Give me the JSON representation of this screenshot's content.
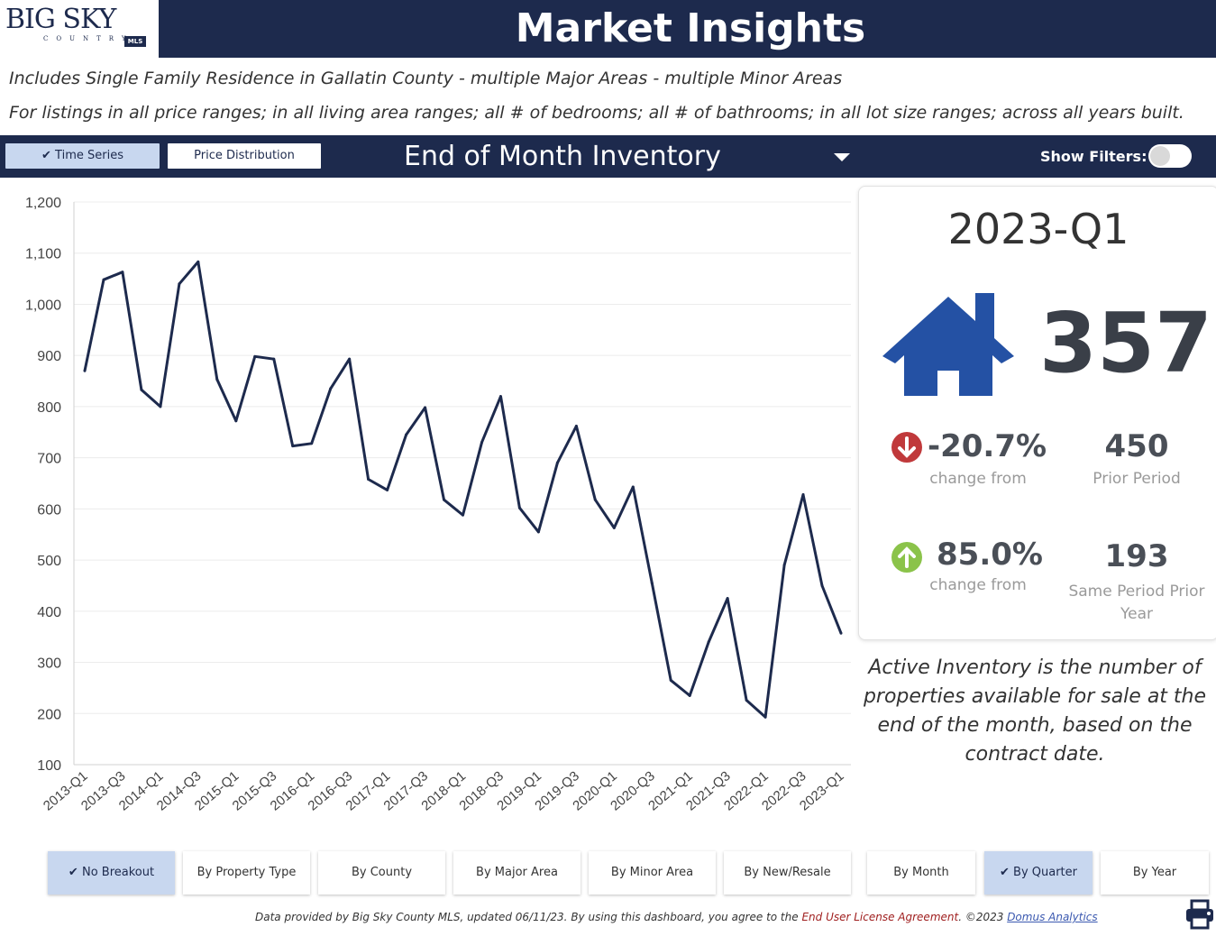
{
  "logo": {
    "text": "BIG SKY",
    "sub": "COUNTRY",
    "badge": "MLS"
  },
  "header": {
    "title": "Market Insights"
  },
  "description": {
    "line1": "Includes Single Family Residence in Gallatin County - multiple Major Areas - multiple Minor Areas",
    "line2": "For listings in all price ranges; in all living area ranges; all # of bedrooms; all # of bathrooms; in all lot size ranges; across all years built."
  },
  "toolbar": {
    "time_series": "Time Series",
    "price_distribution": "Price Distribution",
    "measure": "End of Month Inventory",
    "show_filters": "Show Filters:"
  },
  "kpi": {
    "period": "2023-Q1",
    "value": "357",
    "change_prior_pct": "-20.7%",
    "change_prior_label": "change from",
    "prior_value": "450",
    "prior_label": "Prior Period",
    "change_year_pct": "85.0%",
    "change_year_label": "change from",
    "year_value": "193",
    "year_label_1": "Same Period Prior",
    "year_label_2": "Year"
  },
  "note": "Active Inventory is the number of properties available for sale at the end of the month, based on the contract date.",
  "breakout_buttons": [
    "No Breakout",
    "By Property Type",
    "By County",
    "By Major Area",
    "By Minor Area",
    "By New/Resale"
  ],
  "period_buttons": [
    "By Month",
    "By Quarter",
    "By Year"
  ],
  "footer": {
    "text": "Data provided by Big Sky County MLS, updated 06/11/23.  By using this dashboard, you agree to the ",
    "license": "End User License Agreement",
    "copy": ".  ©2023 ",
    "company": "Domus Analytics"
  },
  "colors": {
    "navy": "#1d2a4d",
    "selected": "#c8d7ef",
    "house": "#2451a4",
    "down": "#c0393b",
    "up": "#8bc34a",
    "line": "#1d2a4d"
  },
  "chart_data": {
    "type": "line",
    "title": "",
    "xlabel": "",
    "ylabel": "",
    "ylim": [
      100,
      1200
    ],
    "yticks": [
      100,
      200,
      300,
      400,
      500,
      600,
      700,
      800,
      900,
      1000,
      1100,
      1200
    ],
    "grid": true,
    "tick_labels": [
      "2013-Q1",
      "2013-Q3",
      "2014-Q1",
      "2014-Q3",
      "2015-Q1",
      "2015-Q3",
      "2016-Q1",
      "2016-Q3",
      "2017-Q1",
      "2017-Q3",
      "2018-Q1",
      "2018-Q3",
      "2019-Q1",
      "2019-Q3",
      "2020-Q1",
      "2020-Q3",
      "2021-Q1",
      "2021-Q3",
      "2022-Q1",
      "2022-Q3",
      "2023-Q1"
    ],
    "categories": [
      "2013-Q1",
      "2013-Q2",
      "2013-Q3",
      "2013-Q4",
      "2014-Q1",
      "2014-Q2",
      "2014-Q3",
      "2014-Q4",
      "2015-Q1",
      "2015-Q2",
      "2015-Q3",
      "2015-Q4",
      "2016-Q1",
      "2016-Q2",
      "2016-Q3",
      "2016-Q4",
      "2017-Q1",
      "2017-Q2",
      "2017-Q3",
      "2017-Q4",
      "2018-Q1",
      "2018-Q2",
      "2018-Q3",
      "2018-Q4",
      "2019-Q1",
      "2019-Q2",
      "2019-Q3",
      "2019-Q4",
      "2020-Q1",
      "2020-Q2",
      "2020-Q3",
      "2020-Q4",
      "2021-Q1",
      "2021-Q2",
      "2021-Q3",
      "2021-Q4",
      "2022-Q1",
      "2022-Q2",
      "2022-Q3",
      "2022-Q4",
      "2023-Q1"
    ],
    "values": [
      870,
      1048,
      1063,
      833,
      800,
      1040,
      1083,
      853,
      772,
      898,
      893,
      723,
      728,
      835,
      893,
      658,
      637,
      745,
      798,
      618,
      588,
      730,
      820,
      602,
      555,
      690,
      762,
      618,
      563,
      643,
      455,
      265,
      235,
      340,
      425,
      226,
      193,
      490,
      628,
      450,
      357
    ]
  }
}
